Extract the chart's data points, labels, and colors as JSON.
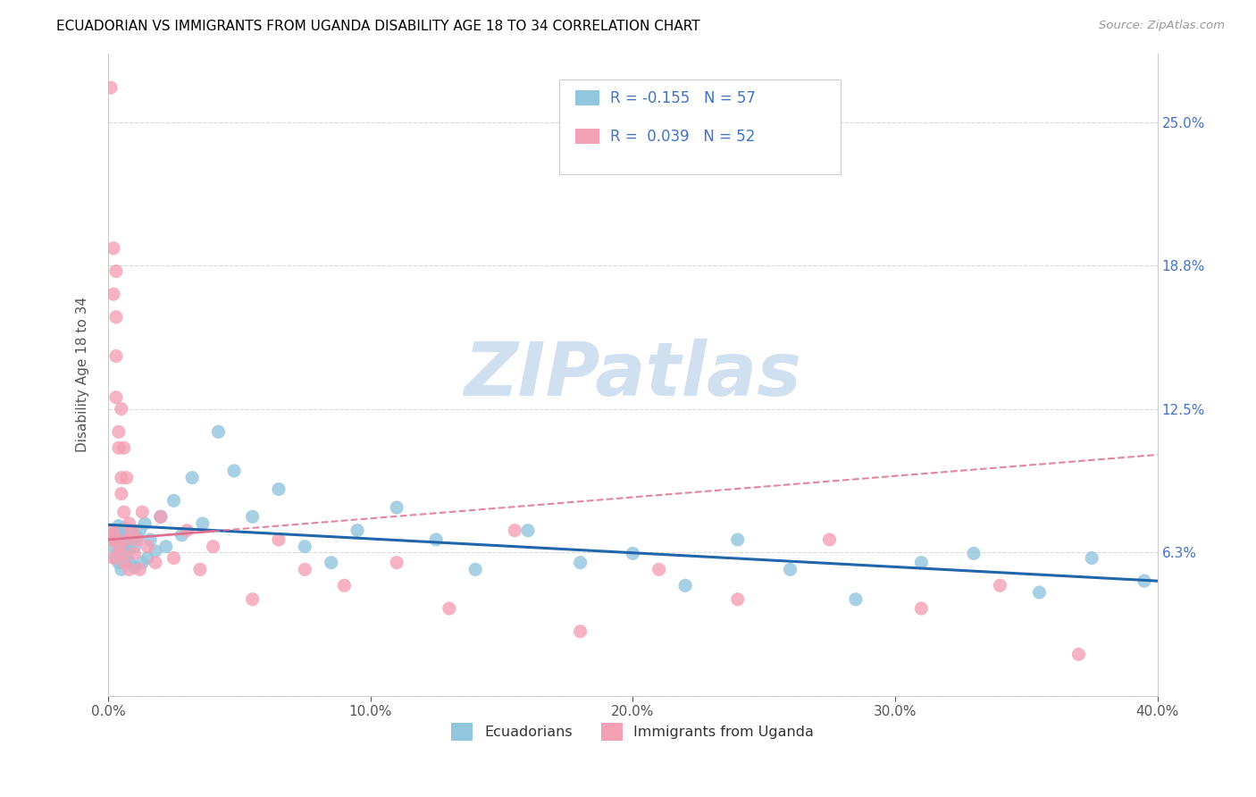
{
  "title": "ECUADORIAN VS IMMIGRANTS FROM UGANDA DISABILITY AGE 18 TO 34 CORRELATION CHART",
  "source": "Source: ZipAtlas.com",
  "ylabel": "Disability Age 18 to 34",
  "xlim": [
    0.0,
    0.4
  ],
  "ylim": [
    0.0,
    0.28
  ],
  "blue_color": "#92c5de",
  "pink_color": "#f4a0b5",
  "blue_line_color": "#2166ac",
  "pink_line_color": "#e07090",
  "legend_r1": "R = -0.155   N = 57",
  "legend_r2": "R =  0.039   N = 52",
  "blue_scatter_x": [
    0.001,
    0.002,
    0.002,
    0.003,
    0.003,
    0.004,
    0.004,
    0.004,
    0.005,
    0.005,
    0.005,
    0.005,
    0.006,
    0.006,
    0.006,
    0.007,
    0.007,
    0.008,
    0.008,
    0.009,
    0.01,
    0.01,
    0.011,
    0.012,
    0.013,
    0.014,
    0.015,
    0.016,
    0.018,
    0.02,
    0.022,
    0.025,
    0.028,
    0.032,
    0.036,
    0.042,
    0.048,
    0.055,
    0.065,
    0.075,
    0.085,
    0.095,
    0.11,
    0.125,
    0.14,
    0.16,
    0.18,
    0.2,
    0.22,
    0.24,
    0.26,
    0.285,
    0.31,
    0.33,
    0.355,
    0.375,
    0.395
  ],
  "blue_scatter_y": [
    0.07,
    0.065,
    0.068,
    0.06,
    0.072,
    0.063,
    0.058,
    0.074,
    0.068,
    0.055,
    0.062,
    0.07,
    0.066,
    0.059,
    0.073,
    0.061,
    0.067,
    0.064,
    0.058,
    0.071,
    0.065,
    0.056,
    0.069,
    0.072,
    0.058,
    0.075,
    0.06,
    0.068,
    0.063,
    0.078,
    0.065,
    0.085,
    0.07,
    0.095,
    0.075,
    0.115,
    0.098,
    0.078,
    0.09,
    0.065,
    0.058,
    0.072,
    0.082,
    0.068,
    0.055,
    0.072,
    0.058,
    0.062,
    0.048,
    0.068,
    0.055,
    0.042,
    0.058,
    0.062,
    0.045,
    0.06,
    0.05
  ],
  "pink_scatter_x": [
    0.001,
    0.001,
    0.001,
    0.002,
    0.002,
    0.002,
    0.002,
    0.003,
    0.003,
    0.003,
    0.003,
    0.003,
    0.004,
    0.004,
    0.004,
    0.005,
    0.005,
    0.005,
    0.005,
    0.006,
    0.006,
    0.006,
    0.007,
    0.007,
    0.008,
    0.008,
    0.009,
    0.01,
    0.011,
    0.012,
    0.013,
    0.015,
    0.018,
    0.02,
    0.025,
    0.03,
    0.035,
    0.04,
    0.055,
    0.065,
    0.075,
    0.09,
    0.11,
    0.13,
    0.155,
    0.18,
    0.21,
    0.24,
    0.275,
    0.31,
    0.34,
    0.37
  ],
  "pink_scatter_y": [
    0.265,
    0.07,
    0.068,
    0.195,
    0.175,
    0.072,
    0.06,
    0.185,
    0.165,
    0.148,
    0.13,
    0.068,
    0.115,
    0.108,
    0.065,
    0.125,
    0.095,
    0.088,
    0.062,
    0.108,
    0.08,
    0.058,
    0.095,
    0.068,
    0.075,
    0.055,
    0.072,
    0.062,
    0.068,
    0.055,
    0.08,
    0.065,
    0.058,
    0.078,
    0.06,
    0.072,
    0.055,
    0.065,
    0.042,
    0.068,
    0.055,
    0.048,
    0.058,
    0.038,
    0.072,
    0.028,
    0.055,
    0.042,
    0.068,
    0.038,
    0.048,
    0.018
  ]
}
